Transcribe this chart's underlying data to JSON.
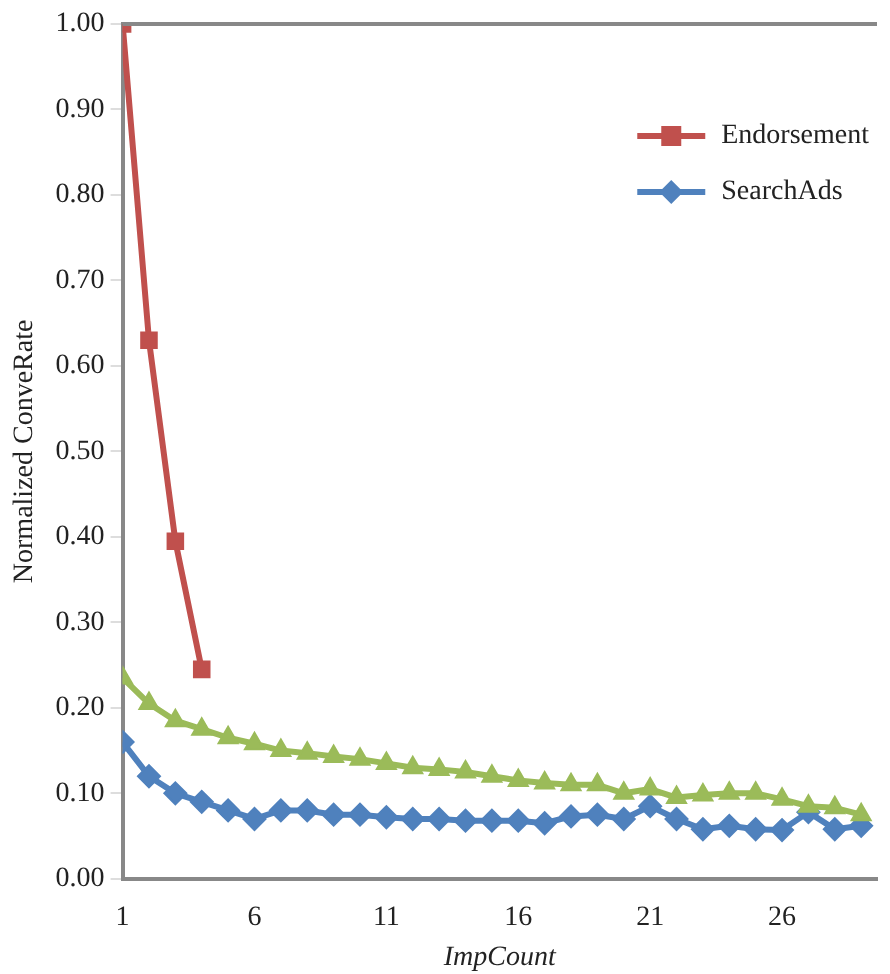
{
  "chart_data": {
    "type": "line",
    "xlabel": "ImpCount",
    "ylabel": "Normalized ConveRate",
    "xlim": [
      1,
      29.6
    ],
    "xticks": [
      1,
      6,
      11,
      16,
      21,
      26
    ],
    "ylim": [
      0,
      1
    ],
    "yticks": [
      {
        "value": 0,
        "label": "0.00"
      },
      {
        "value": 0.1,
        "label": "0.10"
      },
      {
        "value": 0.2,
        "label": "0.20"
      },
      {
        "value": 0.3,
        "label": "0.30"
      },
      {
        "value": 0.4,
        "label": "0.40"
      },
      {
        "value": 0.5,
        "label": "0.50"
      },
      {
        "value": 0.6,
        "label": "0.60"
      },
      {
        "value": 0.7,
        "label": "0.70"
      },
      {
        "value": 0.8,
        "label": "0.80"
      },
      {
        "value": 0.9,
        "label": "0.90"
      },
      {
        "value": 1,
        "label": "1.00"
      }
    ],
    "grid": false,
    "legend": "top right",
    "line_style": "solid",
    "series": [
      {
        "color": "#9bbb59",
        "marker": "triangle",
        "x": [
          1,
          2,
          3,
          4,
          5,
          6,
          7,
          8,
          9,
          10,
          11,
          12,
          13,
          14,
          15,
          16,
          17,
          18,
          19,
          20,
          21,
          22,
          23,
          24,
          25,
          26,
          27,
          28,
          29
        ],
        "values": [
          0.235,
          0.205,
          0.185,
          0.175,
          0.165,
          0.158,
          0.15,
          0.147,
          0.143,
          0.14,
          0.135,
          0.13,
          0.128,
          0.125,
          0.12,
          0.115,
          0.112,
          0.11,
          0.11,
          0.1,
          0.105,
          0.095,
          0.098,
          0.1,
          0.1,
          0.093,
          0.085,
          0.083,
          0.075
        ]
      },
      {
        "name": "Endorsement",
        "color": "#c0504d",
        "marker": "square",
        "x": [
          1,
          2,
          3,
          4
        ],
        "values": [
          1.0,
          0.63,
          0.395,
          0.245
        ]
      },
      {
        "name": "SearchAds",
        "color": "#4f81bd",
        "marker": "diamond",
        "x": [
          1,
          2,
          3,
          4,
          5,
          6,
          7,
          8,
          9,
          10,
          11,
          12,
          13,
          14,
          15,
          16,
          17,
          18,
          19,
          20,
          21,
          22,
          23,
          24,
          25,
          26,
          27,
          28,
          29
        ],
        "values": [
          0.16,
          0.12,
          0.1,
          0.09,
          0.08,
          0.07,
          0.08,
          0.08,
          0.075,
          0.075,
          0.072,
          0.07,
          0.07,
          0.068,
          0.068,
          0.068,
          0.065,
          0.073,
          0.075,
          0.07,
          0.085,
          0.07,
          0.058,
          0.062,
          0.058,
          0.057,
          0.078,
          0.058,
          0.062
        ]
      }
    ]
  }
}
